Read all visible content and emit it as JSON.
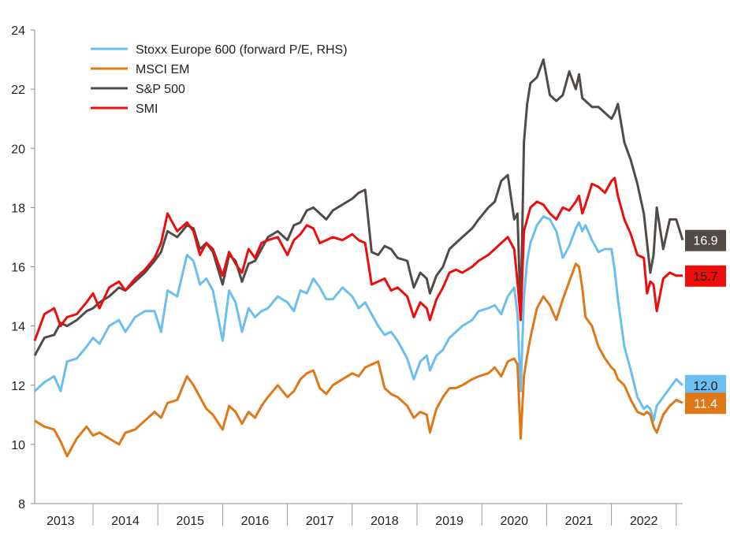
{
  "chart_data": {
    "type": "line",
    "title": "",
    "xlabel": "",
    "ylabel": "",
    "ylim": [
      8,
      24
    ],
    "yticks": [
      8,
      10,
      12,
      14,
      16,
      18,
      20,
      22,
      24
    ],
    "xlim": [
      2012.6,
      2022.6
    ],
    "xticks": [
      {
        "label": "2013",
        "x": 2013.0
      },
      {
        "label": "2014",
        "x": 2014.0
      },
      {
        "label": "2015",
        "x": 2015.0
      },
      {
        "label": "2016",
        "x": 2016.0
      },
      {
        "label": "2017",
        "x": 2017.0
      },
      {
        "label": "2018",
        "x": 2018.0
      },
      {
        "label": "2019",
        "x": 2019.0
      },
      {
        "label": "2020",
        "x": 2020.0
      },
      {
        "label": "2021",
        "x": 2021.0
      },
      {
        "label": "2022",
        "x": 2022.0
      }
    ],
    "legend_position": "top-left",
    "series": [
      {
        "name": "Stoxx Europe 600 (forward P/E, RHS)",
        "color": "#6bbef0",
        "end_label": "12.0",
        "x": [
          2012.6,
          2012.75,
          2012.9,
          2013.0,
          2013.1,
          2013.25,
          2013.4,
          2013.5,
          2013.6,
          2013.75,
          2013.9,
          2014.0,
          2014.15,
          2014.3,
          2014.45,
          2014.55,
          2014.65,
          2014.8,
          2014.95,
          2015.05,
          2015.15,
          2015.25,
          2015.35,
          2015.5,
          2015.6,
          2015.7,
          2015.8,
          2015.9,
          2016.0,
          2016.1,
          2016.2,
          2016.35,
          2016.5,
          2016.6,
          2016.7,
          2016.8,
          2016.9,
          2017.0,
          2017.1,
          2017.2,
          2017.35,
          2017.5,
          2017.6,
          2017.7,
          2017.8,
          2017.9,
          2018.0,
          2018.1,
          2018.2,
          2018.35,
          2018.45,
          2018.55,
          2018.65,
          2018.7,
          2018.8,
          2018.9,
          2019.0,
          2019.1,
          2019.2,
          2019.35,
          2019.45,
          2019.6,
          2019.7,
          2019.8,
          2019.9,
          2020.0,
          2020.05,
          2020.1,
          2020.15,
          2020.2,
          2020.25,
          2020.35,
          2020.45,
          2020.55,
          2020.65,
          2020.75,
          2020.85,
          2020.95,
          2021.0,
          2021.05,
          2021.1,
          2021.2,
          2021.3,
          2021.4,
          2021.5,
          2021.55,
          2021.6,
          2021.7,
          2021.8,
          2021.9,
          2022.0,
          2022.05,
          2022.1,
          2022.15,
          2022.2,
          2022.3,
          2022.4,
          2022.5,
          2022.6
        ],
        "values": [
          11.8,
          12.1,
          12.3,
          11.8,
          12.8,
          12.9,
          13.3,
          13.6,
          13.4,
          14.0,
          14.2,
          13.8,
          14.3,
          14.5,
          14.5,
          13.8,
          15.2,
          15.0,
          16.4,
          16.2,
          15.4,
          15.6,
          15.2,
          13.5,
          15.2,
          14.8,
          13.8,
          14.6,
          14.3,
          14.5,
          14.6,
          15.0,
          14.8,
          14.5,
          15.2,
          15.1,
          15.6,
          15.3,
          14.9,
          14.9,
          15.3,
          15.0,
          14.6,
          14.8,
          14.4,
          14.0,
          13.7,
          13.8,
          13.5,
          12.9,
          12.2,
          12.8,
          13.0,
          12.5,
          13.0,
          13.2,
          13.6,
          13.8,
          14.0,
          14.2,
          14.5,
          14.6,
          14.7,
          14.4,
          15.0,
          15.3,
          14.4,
          11.8,
          15.0,
          16.2,
          16.8,
          17.4,
          17.7,
          17.6,
          17.2,
          16.3,
          16.7,
          17.3,
          17.5,
          17.2,
          17.4,
          16.9,
          16.5,
          16.6,
          16.6,
          15.9,
          14.9,
          13.3,
          12.5,
          11.6,
          11.2,
          11.3,
          11.2,
          10.8,
          11.3,
          11.6,
          11.9,
          12.2,
          12.0
        ]
      },
      {
        "name": "MSCI EM",
        "color": "#e07818",
        "end_label": "11.4",
        "x": [
          2012.6,
          2012.75,
          2012.9,
          2013.0,
          2013.1,
          2013.25,
          2013.4,
          2013.5,
          2013.6,
          2013.75,
          2013.9,
          2014.0,
          2014.15,
          2014.3,
          2014.45,
          2014.55,
          2014.65,
          2014.8,
          2014.95,
          2015.05,
          2015.15,
          2015.25,
          2015.35,
          2015.5,
          2015.6,
          2015.7,
          2015.8,
          2015.9,
          2016.0,
          2016.1,
          2016.2,
          2016.35,
          2016.5,
          2016.6,
          2016.7,
          2016.8,
          2016.9,
          2017.0,
          2017.1,
          2017.2,
          2017.35,
          2017.5,
          2017.6,
          2017.7,
          2017.8,
          2017.9,
          2018.0,
          2018.1,
          2018.2,
          2018.35,
          2018.45,
          2018.55,
          2018.65,
          2018.7,
          2018.8,
          2018.9,
          2019.0,
          2019.1,
          2019.2,
          2019.35,
          2019.45,
          2019.6,
          2019.7,
          2019.8,
          2019.9,
          2020.0,
          2020.05,
          2020.1,
          2020.15,
          2020.2,
          2020.25,
          2020.35,
          2020.45,
          2020.55,
          2020.65,
          2020.75,
          2020.85,
          2020.95,
          2021.0,
          2021.05,
          2021.1,
          2021.2,
          2021.3,
          2021.4,
          2021.5,
          2021.55,
          2021.6,
          2021.7,
          2021.8,
          2021.9,
          2022.0,
          2022.05,
          2022.1,
          2022.15,
          2022.2,
          2022.3,
          2022.4,
          2022.5,
          2022.6
        ],
        "values": [
          10.8,
          10.6,
          10.5,
          10.1,
          9.6,
          10.2,
          10.6,
          10.3,
          10.4,
          10.2,
          10.0,
          10.4,
          10.5,
          10.8,
          11.1,
          10.9,
          11.4,
          11.5,
          12.3,
          12.0,
          11.6,
          11.2,
          11.0,
          10.5,
          11.3,
          11.1,
          10.7,
          11.1,
          10.9,
          11.3,
          11.6,
          12.0,
          11.6,
          11.8,
          12.2,
          12.4,
          12.5,
          11.9,
          11.7,
          12.0,
          12.2,
          12.4,
          12.3,
          12.6,
          12.7,
          12.8,
          11.9,
          11.7,
          11.6,
          11.3,
          10.9,
          11.1,
          11.0,
          10.4,
          11.2,
          11.6,
          11.9,
          11.9,
          12.0,
          12.2,
          12.3,
          12.4,
          12.6,
          12.3,
          12.8,
          12.9,
          12.7,
          10.2,
          12.3,
          13.0,
          13.6,
          14.6,
          15.0,
          14.7,
          14.2,
          14.9,
          15.5,
          16.1,
          16.0,
          15.3,
          14.3,
          14.0,
          13.3,
          12.9,
          12.6,
          12.5,
          12.2,
          12.0,
          11.5,
          11.1,
          11.0,
          11.1,
          11.0,
          10.6,
          10.4,
          11.0,
          11.3,
          11.5,
          11.4
        ]
      },
      {
        "name": "S&P 500",
        "color": "#524a46",
        "end_label": "16.9",
        "x": [
          2012.6,
          2012.75,
          2012.9,
          2013.0,
          2013.1,
          2013.25,
          2013.4,
          2013.5,
          2013.6,
          2013.75,
          2013.9,
          2014.0,
          2014.15,
          2014.3,
          2014.45,
          2014.55,
          2014.65,
          2014.8,
          2014.95,
          2015.05,
          2015.15,
          2015.25,
          2015.35,
          2015.5,
          2015.6,
          2015.7,
          2015.8,
          2015.9,
          2016.0,
          2016.1,
          2016.2,
          2016.35,
          2016.5,
          2016.6,
          2016.7,
          2016.8,
          2016.9,
          2017.0,
          2017.1,
          2017.2,
          2017.35,
          2017.5,
          2017.6,
          2017.7,
          2017.8,
          2017.9,
          2018.0,
          2018.1,
          2018.2,
          2018.35,
          2018.45,
          2018.55,
          2018.65,
          2018.7,
          2018.8,
          2018.9,
          2019.0,
          2019.1,
          2019.2,
          2019.35,
          2019.45,
          2019.6,
          2019.7,
          2019.8,
          2019.9,
          2020.0,
          2020.05,
          2020.1,
          2020.15,
          2020.2,
          2020.25,
          2020.35,
          2020.45,
          2020.55,
          2020.65,
          2020.75,
          2020.85,
          2020.95,
          2021.0,
          2021.05,
          2021.1,
          2021.2,
          2021.3,
          2021.4,
          2021.5,
          2021.55,
          2021.6,
          2021.7,
          2021.8,
          2021.9,
          2022.0,
          2022.05,
          2022.1,
          2022.15,
          2022.2,
          2022.3,
          2022.4,
          2022.5,
          2022.6
        ],
        "values": [
          13.0,
          13.6,
          13.7,
          14.1,
          14.0,
          14.2,
          14.5,
          14.6,
          14.8,
          15.0,
          15.3,
          15.2,
          15.5,
          15.8,
          16.2,
          16.5,
          17.2,
          17.0,
          17.4,
          17.3,
          16.6,
          16.8,
          16.5,
          15.4,
          16.4,
          16.2,
          15.5,
          16.1,
          16.2,
          16.6,
          17.0,
          17.2,
          16.9,
          17.4,
          17.5,
          17.9,
          18.0,
          17.8,
          17.6,
          17.9,
          18.1,
          18.3,
          18.5,
          18.6,
          16.5,
          16.4,
          16.7,
          16.6,
          16.3,
          16.2,
          15.3,
          15.8,
          15.6,
          15.1,
          15.7,
          16.0,
          16.6,
          16.8,
          17.0,
          17.3,
          17.6,
          18.0,
          18.2,
          18.9,
          19.1,
          17.6,
          17.8,
          14.3,
          20.2,
          21.5,
          22.2,
          22.4,
          23.0,
          21.8,
          21.6,
          21.8,
          22.6,
          22.0,
          22.5,
          21.7,
          21.6,
          21.4,
          21.4,
          21.2,
          21.0,
          21.2,
          21.5,
          20.2,
          19.6,
          18.8,
          17.8,
          16.8,
          15.8,
          16.4,
          18.0,
          16.6,
          17.6,
          17.6,
          16.9
        ]
      },
      {
        "name": "SMI",
        "color": "#ee0d0d",
        "end_label": "15.7",
        "x": [
          2012.6,
          2012.75,
          2012.9,
          2013.0,
          2013.1,
          2013.25,
          2013.4,
          2013.5,
          2013.6,
          2013.75,
          2013.9,
          2014.0,
          2014.15,
          2014.3,
          2014.45,
          2014.55,
          2014.65,
          2014.8,
          2014.95,
          2015.05,
          2015.15,
          2015.25,
          2015.35,
          2015.5,
          2015.6,
          2015.7,
          2015.8,
          2015.9,
          2016.0,
          2016.1,
          2016.2,
          2016.35,
          2016.5,
          2016.6,
          2016.7,
          2016.8,
          2016.9,
          2017.0,
          2017.1,
          2017.2,
          2017.35,
          2017.5,
          2017.6,
          2017.7,
          2017.8,
          2017.9,
          2018.0,
          2018.1,
          2018.2,
          2018.35,
          2018.45,
          2018.55,
          2018.65,
          2018.7,
          2018.8,
          2018.9,
          2019.0,
          2019.1,
          2019.2,
          2019.35,
          2019.45,
          2019.6,
          2019.7,
          2019.8,
          2019.9,
          2020.0,
          2020.05,
          2020.1,
          2020.15,
          2020.2,
          2020.25,
          2020.35,
          2020.45,
          2020.55,
          2020.65,
          2020.75,
          2020.85,
          2020.95,
          2021.0,
          2021.05,
          2021.1,
          2021.2,
          2021.3,
          2021.4,
          2021.5,
          2021.55,
          2021.6,
          2021.7,
          2021.8,
          2021.9,
          2022.0,
          2022.05,
          2022.1,
          2022.15,
          2022.2,
          2022.3,
          2022.4,
          2022.5,
          2022.6
        ],
        "values": [
          13.5,
          14.4,
          14.6,
          14.0,
          14.3,
          14.4,
          14.8,
          15.1,
          14.6,
          15.3,
          15.5,
          15.2,
          15.6,
          15.9,
          16.3,
          16.8,
          17.8,
          17.2,
          17.5,
          17.2,
          16.4,
          16.8,
          16.6,
          15.7,
          16.5,
          16.1,
          15.8,
          16.6,
          16.3,
          16.8,
          16.9,
          17.0,
          16.4,
          16.9,
          17.1,
          17.4,
          17.3,
          16.8,
          16.9,
          17.0,
          16.9,
          17.1,
          16.9,
          16.8,
          15.4,
          15.5,
          15.6,
          15.2,
          15.3,
          15.0,
          14.3,
          14.8,
          14.6,
          14.2,
          14.9,
          15.3,
          15.8,
          15.9,
          15.8,
          16.0,
          16.2,
          16.4,
          16.6,
          16.8,
          17.0,
          16.6,
          15.5,
          14.2,
          17.2,
          17.6,
          18.0,
          18.2,
          18.1,
          17.8,
          17.6,
          18.0,
          17.9,
          18.2,
          18.4,
          17.8,
          18.1,
          18.8,
          18.7,
          18.5,
          18.9,
          19.0,
          18.4,
          17.6,
          17.1,
          16.4,
          16.3,
          15.1,
          15.5,
          15.4,
          14.5,
          15.6,
          15.8,
          15.7,
          15.7
        ]
      }
    ]
  }
}
